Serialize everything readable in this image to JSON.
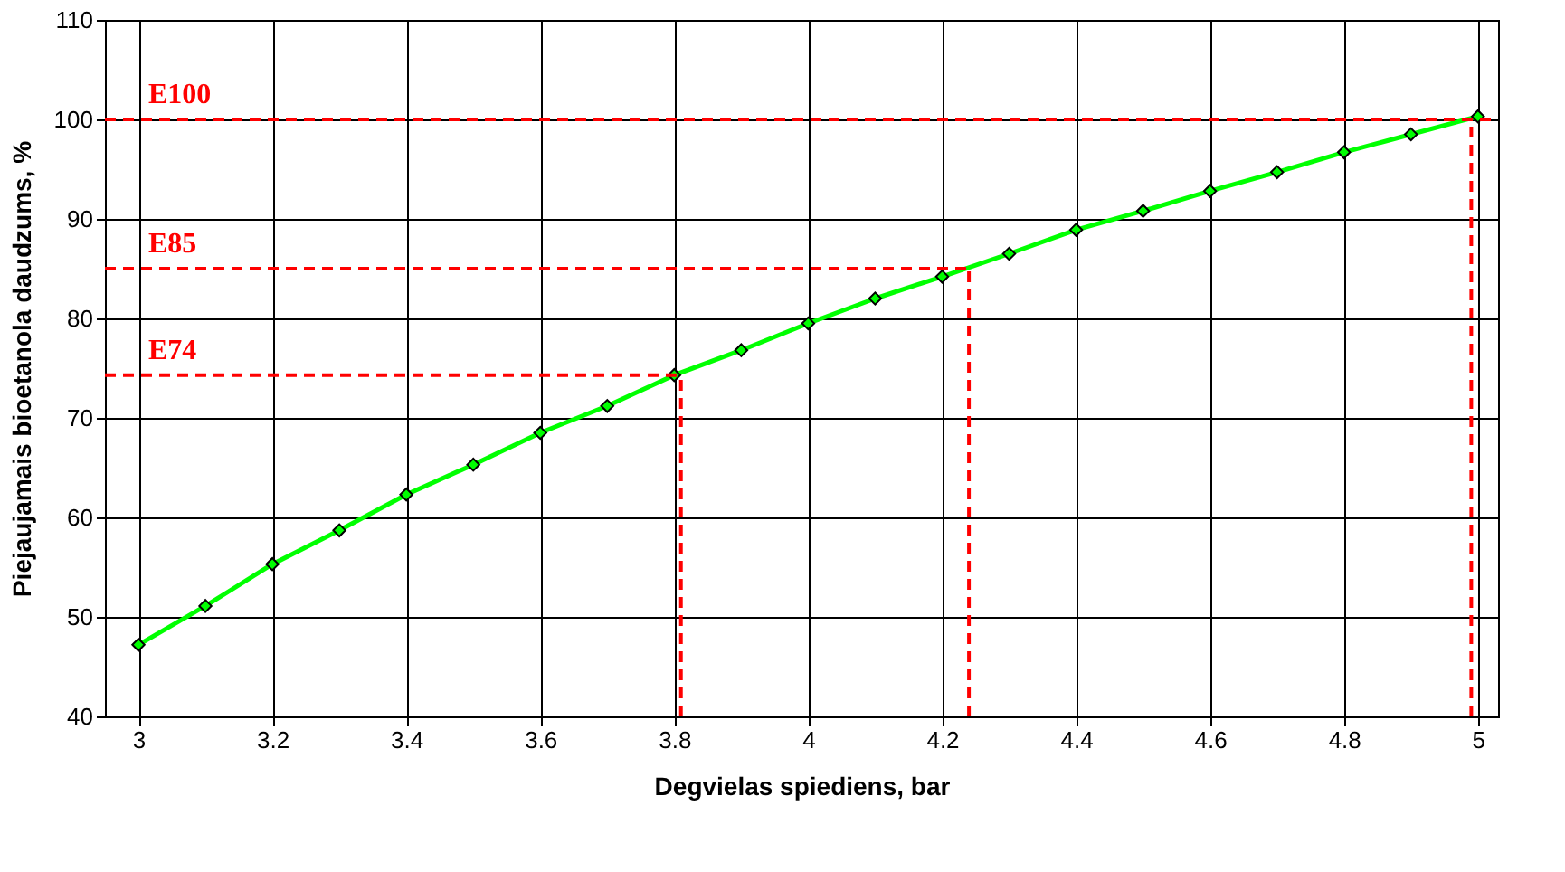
{
  "chart_data": {
    "type": "line",
    "xlabel": "Degvielas spiediens, bar",
    "ylabel": "Piejaujamais bioetanola daudzums, %",
    "x": [
      3.0,
      3.1,
      3.2,
      3.3,
      3.4,
      3.5,
      3.6,
      3.7,
      3.8,
      3.9,
      4.0,
      4.1,
      4.2,
      4.3,
      4.4,
      4.5,
      4.6,
      4.7,
      4.8,
      4.9,
      5.0
    ],
    "series": [
      {
        "color": "#00ff00",
        "values": [
          47.2,
          51.1,
          55.3,
          58.7,
          62.3,
          65.3,
          68.5,
          71.2,
          74.3,
          76.8,
          79.5,
          82.0,
          84.2,
          86.5,
          88.9,
          90.8,
          92.8,
          94.7,
          96.7,
          98.5,
          100.3
        ]
      }
    ],
    "marker": "diamond",
    "line_style": "solid",
    "xlim": [
      2.95,
      5.03
    ],
    "xticks": [
      3,
      3.2,
      3.4,
      3.6,
      3.8,
      4,
      4.2,
      4.4,
      4.6,
      4.8,
      5
    ],
    "ylim": [
      40,
      110
    ],
    "yticks": [
      40,
      50,
      60,
      70,
      80,
      90,
      100,
      110
    ],
    "grid": true,
    "ref_lines": [
      {
        "axis": "y",
        "value": 100,
        "label": "E100",
        "color": "#ff0000",
        "line_style": "dashed"
      },
      {
        "axis": "y",
        "value": 85,
        "label": "E85",
        "color": "#ff0000",
        "line_style": "dashed"
      },
      {
        "axis": "y",
        "value": 74.3,
        "label": "E74",
        "color": "#ff0000",
        "line_style": "dashed"
      },
      {
        "axis": "x",
        "value": 4.99,
        "color": "#ff0000",
        "line_style": "dashed"
      },
      {
        "axis": "x",
        "value": 4.24,
        "color": "#ff0000",
        "line_style": "dashed"
      },
      {
        "axis": "x",
        "value": 3.81,
        "color": "#ff0000",
        "line_style": "dashed"
      }
    ]
  }
}
